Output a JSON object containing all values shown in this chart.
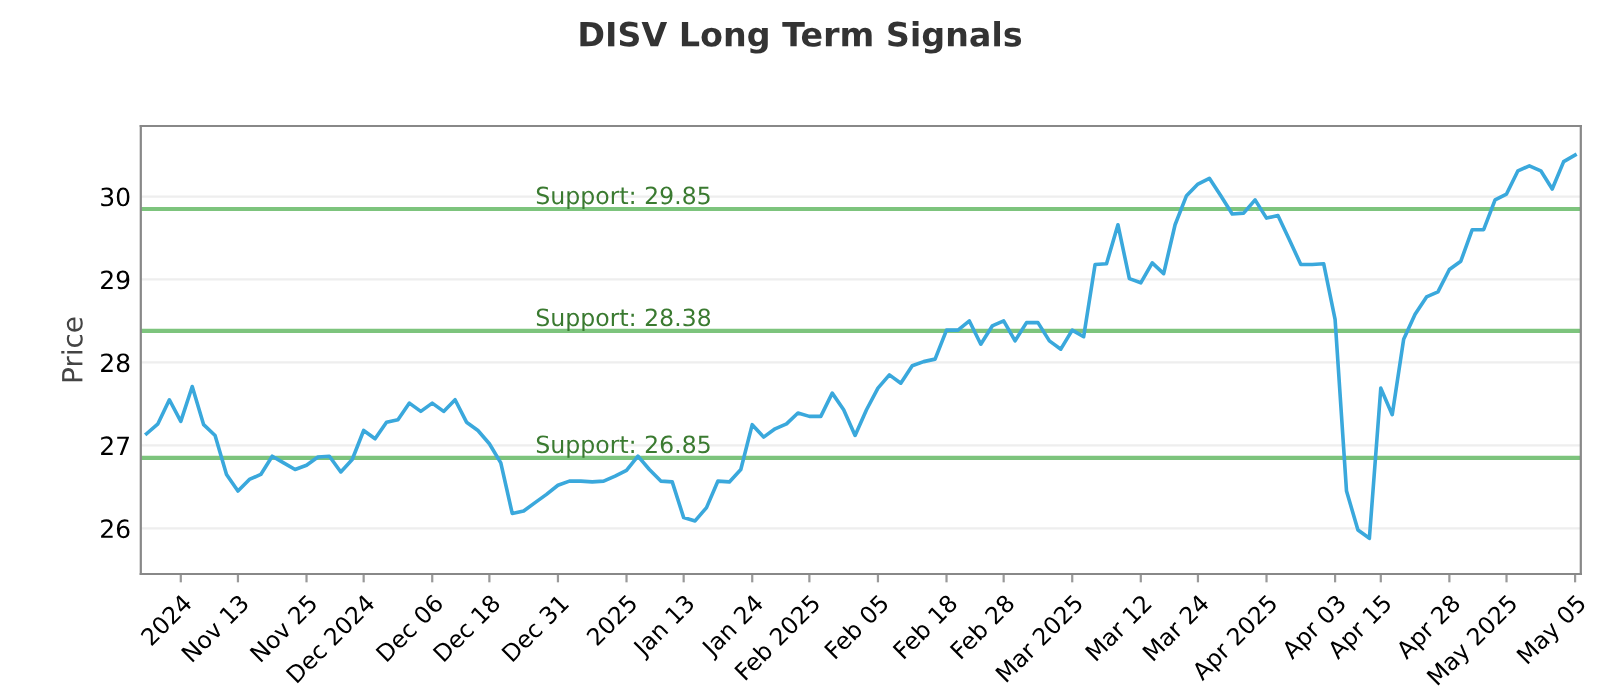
{
  "chart_data": {
    "type": "line",
    "title": "DISV Long Term Signals",
    "ylabel": "Price",
    "categories": [
      null,
      null,
      null,
      "2024",
      null,
      null,
      null,
      null,
      "Nov 13",
      null,
      null,
      null,
      null,
      null,
      "Nov 25",
      null,
      null,
      null,
      null,
      "Dec 2024",
      null,
      null,
      null,
      null,
      null,
      "Dec 06",
      null,
      null,
      null,
      null,
      "Dec 18",
      null,
      null,
      null,
      null,
      null,
      "Dec 31",
      null,
      null,
      null,
      null,
      null,
      "2025",
      null,
      null,
      null,
      null,
      "Jan 13",
      null,
      null,
      null,
      null,
      null,
      "Jan 24",
      null,
      null,
      null,
      null,
      "Feb 2025",
      null,
      null,
      null,
      null,
      null,
      "Feb 05",
      null,
      null,
      null,
      null,
      null,
      "Feb 18",
      null,
      null,
      null,
      null,
      "Feb 28",
      null,
      null,
      null,
      null,
      null,
      "Mar 2025",
      null,
      null,
      null,
      null,
      null,
      "Mar 12",
      null,
      null,
      null,
      null,
      "Mar 24",
      null,
      null,
      null,
      null,
      null,
      "Apr 2025",
      null,
      null,
      null,
      null,
      null,
      "Apr 03",
      null,
      null,
      null,
      "Apr 15",
      null,
      null,
      null,
      null,
      null,
      "Apr 28",
      null,
      null,
      null,
      null,
      "May 2025",
      null,
      null,
      null,
      null,
      null,
      "May 05"
    ],
    "series": [
      {
        "color": "#3aa8dc",
        "values": [
          27.14,
          27.26,
          27.55,
          27.29,
          27.71,
          27.25,
          27.12,
          26.65,
          26.45,
          26.59,
          26.65,
          26.87,
          26.79,
          26.71,
          26.76,
          26.86,
          26.87,
          26.68,
          26.83,
          27.18,
          27.08,
          27.28,
          27.31,
          27.51,
          27.41,
          27.51,
          27.41,
          27.55,
          27.28,
          27.18,
          27.02,
          26.79,
          26.18,
          26.21,
          26.31,
          26.41,
          26.52,
          26.57,
          26.57,
          26.56,
          26.57,
          26.63,
          26.7,
          26.87,
          26.71,
          26.57,
          26.56,
          26.13,
          26.09,
          26.25,
          26.57,
          26.56,
          26.71,
          27.25,
          27.1,
          27.2,
          27.26,
          27.39,
          27.35,
          27.35,
          27.63,
          27.43,
          27.12,
          27.43,
          27.69,
          27.85,
          27.75,
          27.96,
          28.01,
          28.04,
          28.39,
          28.39,
          28.5,
          28.22,
          28.44,
          28.5,
          28.26,
          28.48,
          28.48,
          28.26,
          28.16,
          28.39,
          28.31,
          29.18,
          29.19,
          29.66,
          29.01,
          28.96,
          29.2,
          29.07,
          29.66,
          30.01,
          30.15,
          30.22,
          30.01,
          29.79,
          29.8,
          29.96,
          29.74,
          29.77,
          29.48,
          29.18,
          29.18,
          29.19,
          28.52,
          26.45,
          25.98,
          25.88,
          27.69,
          27.37,
          28.28,
          28.58,
          28.79,
          28.85,
          29.12,
          29.22,
          29.6,
          29.6,
          29.96,
          30.03,
          30.31,
          30.37,
          30.31,
          30.09,
          30.42,
          30.5
        ]
      }
    ],
    "ylim": [
      25.45,
      30.85
    ],
    "yticks": [
      26,
      27,
      28,
      29,
      30
    ],
    "grid": "y",
    "marker": "none",
    "line_style": "solid",
    "ref_lines": [
      {
        "axis": "y",
        "value": 29.85,
        "label": "Support: 29.85",
        "color": "#7dc47d"
      },
      {
        "axis": "y",
        "value": 28.38,
        "label": "Support: 28.38",
        "color": "#7dc47d"
      },
      {
        "axis": "y",
        "value": 26.85,
        "label": "Support: 26.85",
        "color": "#7dc47d"
      }
    ]
  }
}
